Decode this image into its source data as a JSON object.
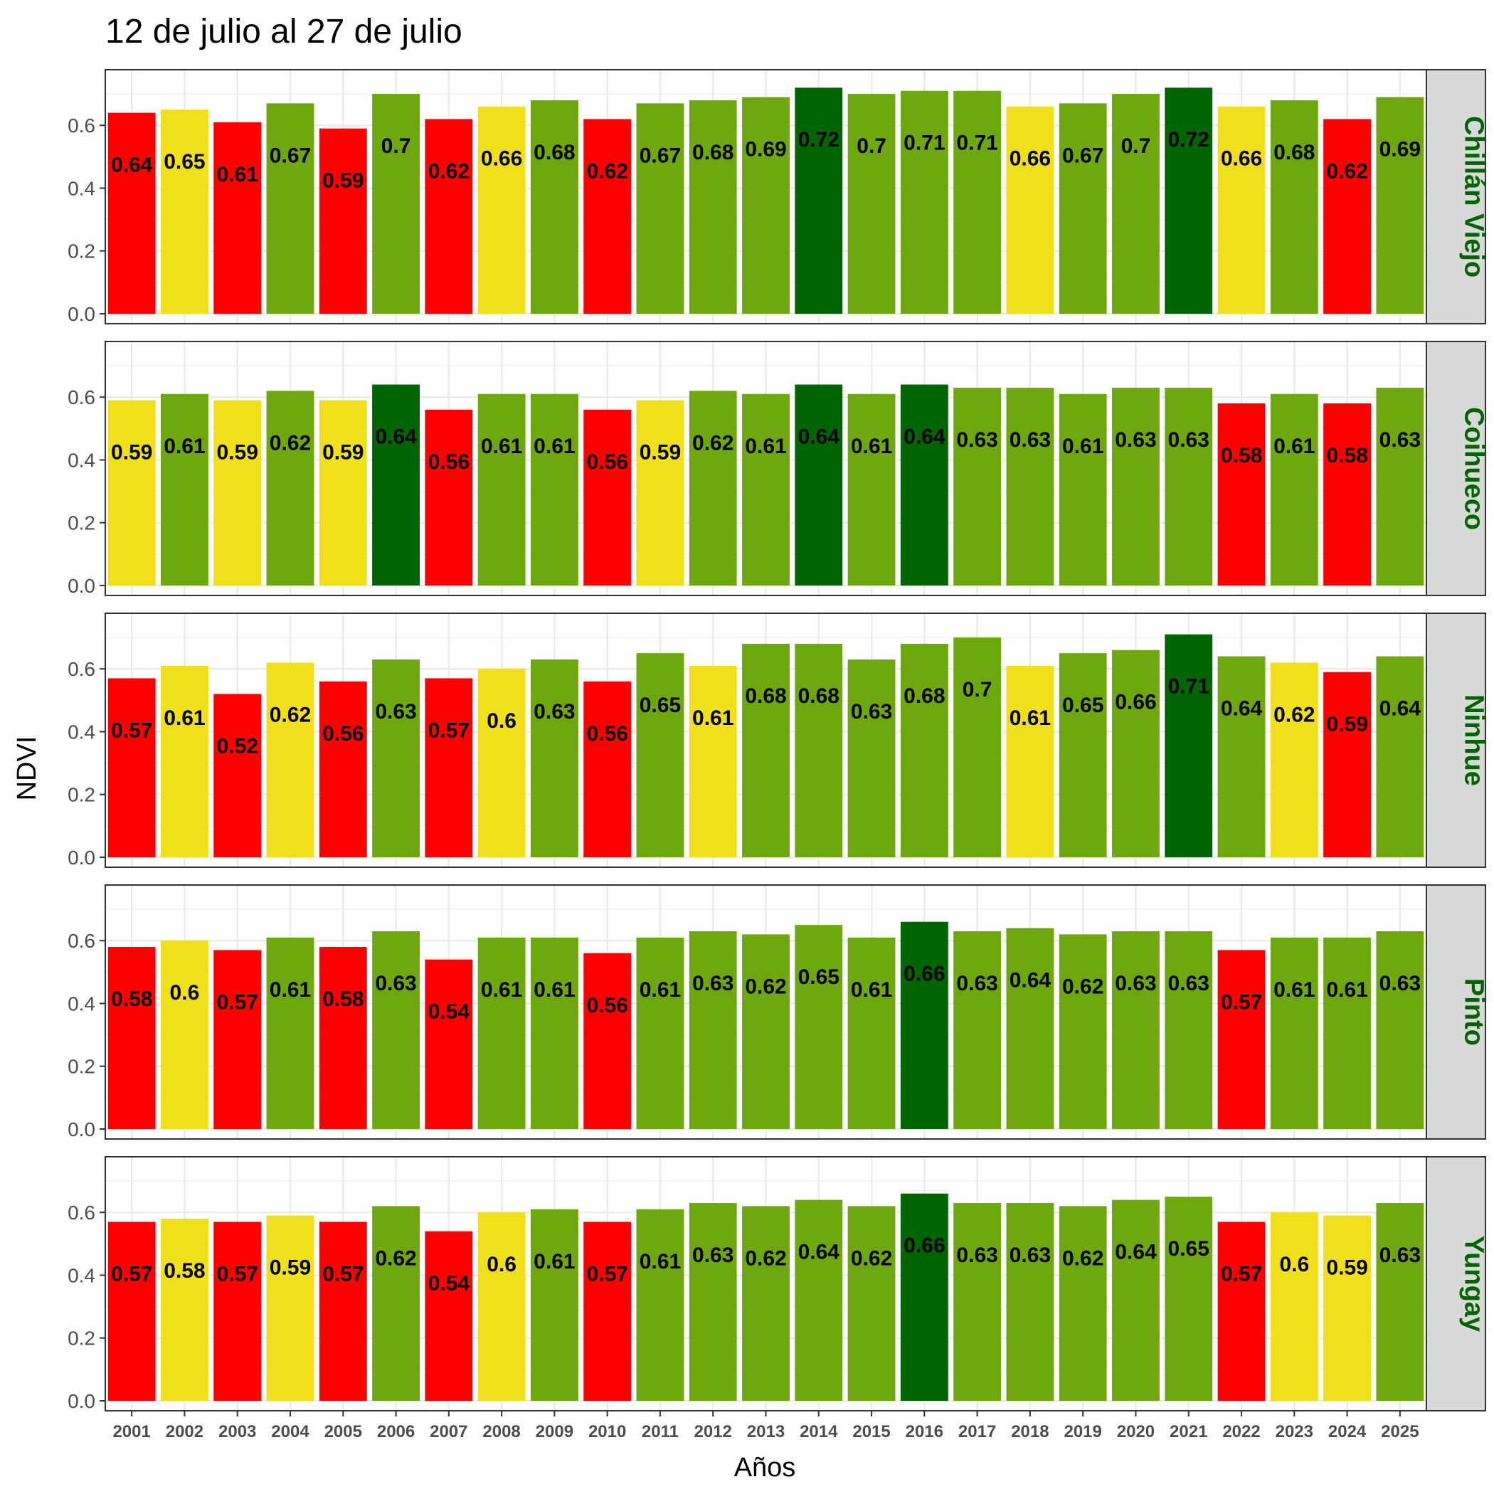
{
  "chart_data": {
    "type": "bar",
    "title": "12 de julio al 27 de julio",
    "xlabel": "Años",
    "ylabel": "NDVI",
    "ylim": [
      0,
      0.75
    ],
    "yticks": [
      "0.0",
      "0.2",
      "0.4",
      "0.6"
    ],
    "grid": true,
    "categories": [
      "2001",
      "2002",
      "2003",
      "2004",
      "2005",
      "2006",
      "2007",
      "2008",
      "2009",
      "2010",
      "2011",
      "2012",
      "2013",
      "2014",
      "2015",
      "2016",
      "2017",
      "2018",
      "2019",
      "2020",
      "2021",
      "2022",
      "2023",
      "2024",
      "2025"
    ],
    "colors": {
      "red": "#ff0000",
      "yellow": "#f0e01c",
      "green": "#6ea80f",
      "darkgreen": "#006400",
      "strip_text": "#006400",
      "strip_bg": "#d9d9d9"
    },
    "panels": [
      {
        "name": "Chillán Viejo",
        "values": [
          0.64,
          0.65,
          0.61,
          0.67,
          0.59,
          0.7,
          0.62,
          0.66,
          0.68,
          0.62,
          0.67,
          0.68,
          0.69,
          0.72,
          0.7,
          0.71,
          0.71,
          0.66,
          0.67,
          0.7,
          0.72,
          0.66,
          0.68,
          0.62,
          0.69
        ],
        "labels": [
          "0.64",
          "0.65",
          "0.61",
          "0.67",
          "0.59",
          "0.7",
          "0.62",
          "0.66",
          "0.68",
          "0.62",
          "0.67",
          "0.68",
          "0.69",
          "0.72",
          "0.7",
          "0.71",
          "0.71",
          "0.66",
          "0.67",
          "0.7",
          "0.72",
          "0.66",
          "0.68",
          "0.62",
          "0.69"
        ],
        "classes": [
          "red",
          "yellow",
          "red",
          "green",
          "red",
          "green",
          "red",
          "yellow",
          "green",
          "red",
          "green",
          "green",
          "green",
          "darkgreen",
          "green",
          "green",
          "green",
          "yellow",
          "green",
          "green",
          "darkgreen",
          "yellow",
          "green",
          "red",
          "green"
        ]
      },
      {
        "name": "Coihueco",
        "values": [
          0.59,
          0.61,
          0.59,
          0.62,
          0.59,
          0.64,
          0.56,
          0.61,
          0.61,
          0.56,
          0.59,
          0.62,
          0.61,
          0.64,
          0.61,
          0.64,
          0.63,
          0.63,
          0.61,
          0.63,
          0.63,
          0.58,
          0.61,
          0.58,
          0.63
        ],
        "labels": [
          "0.59",
          "0.61",
          "0.59",
          "0.62",
          "0.59",
          "0.64",
          "0.56",
          "0.61",
          "0.61",
          "0.56",
          "0.59",
          "0.62",
          "0.61",
          "0.64",
          "0.61",
          "0.64",
          "0.63",
          "0.63",
          "0.61",
          "0.63",
          "0.63",
          "0.58",
          "0.61",
          "0.58",
          "0.63"
        ],
        "classes": [
          "yellow",
          "green",
          "yellow",
          "green",
          "yellow",
          "darkgreen",
          "red",
          "green",
          "green",
          "red",
          "yellow",
          "green",
          "green",
          "darkgreen",
          "green",
          "darkgreen",
          "green",
          "green",
          "green",
          "green",
          "green",
          "red",
          "green",
          "red",
          "green"
        ]
      },
      {
        "name": "Ninhue",
        "values": [
          0.57,
          0.61,
          0.52,
          0.62,
          0.56,
          0.63,
          0.57,
          0.6,
          0.63,
          0.56,
          0.65,
          0.61,
          0.68,
          0.68,
          0.63,
          0.68,
          0.7,
          0.61,
          0.65,
          0.66,
          0.71,
          0.64,
          0.62,
          0.59,
          0.64
        ],
        "labels": [
          "0.57",
          "0.61",
          "0.52",
          "0.62",
          "0.56",
          "0.63",
          "0.57",
          "0.6",
          "0.63",
          "0.56",
          "0.65",
          "0.61",
          "0.68",
          "0.68",
          "0.63",
          "0.68",
          "0.7",
          "0.61",
          "0.65",
          "0.66",
          "0.71",
          "0.64",
          "0.62",
          "0.59",
          "0.64"
        ],
        "classes": [
          "red",
          "yellow",
          "red",
          "yellow",
          "red",
          "green",
          "red",
          "yellow",
          "green",
          "red",
          "green",
          "yellow",
          "green",
          "green",
          "green",
          "green",
          "green",
          "yellow",
          "green",
          "green",
          "darkgreen",
          "green",
          "yellow",
          "red",
          "green"
        ]
      },
      {
        "name": "Pinto",
        "values": [
          0.58,
          0.6,
          0.57,
          0.61,
          0.58,
          0.63,
          0.54,
          0.61,
          0.61,
          0.56,
          0.61,
          0.63,
          0.62,
          0.65,
          0.61,
          0.66,
          0.63,
          0.64,
          0.62,
          0.63,
          0.63,
          0.57,
          0.61,
          0.61,
          0.63
        ],
        "labels": [
          "0.58",
          "0.6",
          "0.57",
          "0.61",
          "0.58",
          "0.63",
          "0.54",
          "0.61",
          "0.61",
          "0.56",
          "0.61",
          "0.63",
          "0.62",
          "0.65",
          "0.61",
          "0.66",
          "0.63",
          "0.64",
          "0.62",
          "0.63",
          "0.63",
          "0.57",
          "0.61",
          "0.61",
          "0.63"
        ],
        "classes": [
          "red",
          "yellow",
          "red",
          "green",
          "red",
          "green",
          "red",
          "green",
          "green",
          "red",
          "green",
          "green",
          "green",
          "green",
          "green",
          "darkgreen",
          "green",
          "green",
          "green",
          "green",
          "green",
          "red",
          "green",
          "green",
          "green"
        ]
      },
      {
        "name": "Yungay",
        "values": [
          0.57,
          0.58,
          0.57,
          0.59,
          0.57,
          0.62,
          0.54,
          0.6,
          0.61,
          0.57,
          0.61,
          0.63,
          0.62,
          0.64,
          0.62,
          0.66,
          0.63,
          0.63,
          0.62,
          0.64,
          0.65,
          0.57,
          0.6,
          0.59,
          0.63
        ],
        "labels": [
          "0.57",
          "0.58",
          "0.57",
          "0.59",
          "0.57",
          "0.62",
          "0.54",
          "0.6",
          "0.61",
          "0.57",
          "0.61",
          "0.63",
          "0.62",
          "0.64",
          "0.62",
          "0.66",
          "0.63",
          "0.63",
          "0.62",
          "0.64",
          "0.65",
          "0.57",
          "0.6",
          "0.59",
          "0.63"
        ],
        "classes": [
          "red",
          "yellow",
          "red",
          "yellow",
          "red",
          "green",
          "red",
          "yellow",
          "green",
          "red",
          "green",
          "green",
          "green",
          "green",
          "green",
          "darkgreen",
          "green",
          "green",
          "green",
          "green",
          "green",
          "red",
          "yellow",
          "yellow",
          "green"
        ]
      }
    ]
  }
}
